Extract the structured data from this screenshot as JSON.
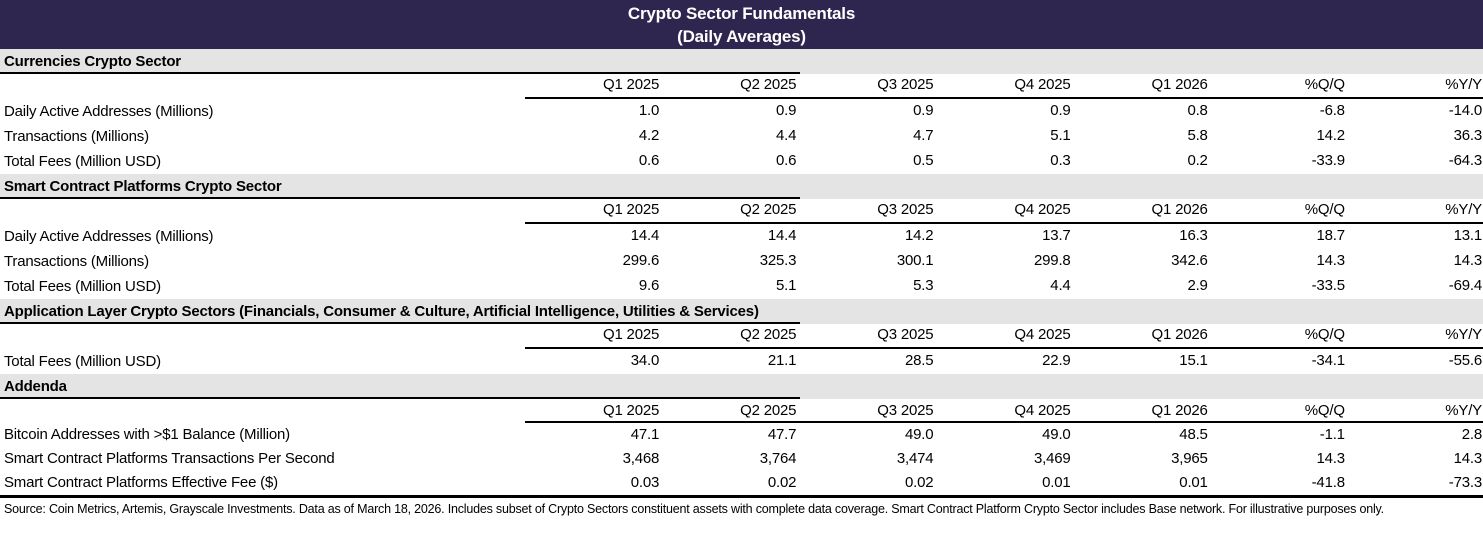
{
  "chart_data": {
    "type": "table",
    "title": "Crypto Sector Fundamentals",
    "subtitle": "(Daily Averages)",
    "columns": [
      "Q1 2025",
      "Q2 2025",
      "Q3 2025",
      "Q4 2025",
      "Q1 2026",
      "%Q/Q",
      "%Y/Y"
    ],
    "sections": [
      {
        "name": "Currencies Crypto Sector",
        "rows": [
          {
            "label": "Daily Active Addresses (Millions)",
            "values": [
              "1.0",
              "0.9",
              "0.9",
              "0.9",
              "0.8",
              "-6.8",
              "-14.0"
            ]
          },
          {
            "label": "Transactions (Millions)",
            "values": [
              "4.2",
              "4.4",
              "4.7",
              "5.1",
              "5.8",
              "14.2",
              "36.3"
            ]
          },
          {
            "label": "Total Fees (Million USD)",
            "values": [
              "0.6",
              "0.6",
              "0.5",
              "0.3",
              "0.2",
              "-33.9",
              "-64.3"
            ]
          }
        ]
      },
      {
        "name": "Smart Contract Platforms Crypto Sector",
        "rows": [
          {
            "label": "Daily Active Addresses (Millions)",
            "values": [
              "14.4",
              "14.4",
              "14.2",
              "13.7",
              "16.3",
              "18.7",
              "13.1"
            ]
          },
          {
            "label": "Transactions (Millions)",
            "values": [
              "299.6",
              "325.3",
              "300.1",
              "299.8",
              "342.6",
              "14.3",
              "14.3"
            ]
          },
          {
            "label": "Total Fees (Million USD)",
            "values": [
              "9.6",
              "5.1",
              "5.3",
              "4.4",
              "2.9",
              "-33.5",
              "-69.4"
            ]
          }
        ]
      },
      {
        "name": "Application Layer Crypto Sectors (Financials, Consumer & Culture, Artificial Intelligence, Utilities & Services)",
        "rows": [
          {
            "label": "Total Fees (Million USD)",
            "values": [
              "34.0",
              "21.1",
              "28.5",
              "22.9",
              "15.1",
              "-34.1",
              "-55.6"
            ]
          }
        ]
      },
      {
        "name": "Addenda",
        "rows": [
          {
            "label": "Bitcoin Addresses with >$1 Balance (Million)",
            "values": [
              "47.1",
              "47.7",
              "49.0",
              "49.0",
              "48.5",
              "-1.1",
              "2.8"
            ]
          },
          {
            "label": "Smart Contract Platforms Transactions Per Second",
            "values": [
              "3,468",
              "3,764",
              "3,474",
              "3,469",
              "3,965",
              "14.3",
              "14.3"
            ]
          },
          {
            "label": "Smart Contract Platforms Effective Fee ($)",
            "values": [
              "0.03",
              "0.02",
              "0.02",
              "0.01",
              "0.01",
              "-41.8",
              "-73.3"
            ]
          }
        ]
      }
    ],
    "footnote": "Source: Coin Metrics, Artemis, Grayscale Investments. Data as of March 18, 2026. Includes subset of Crypto Sectors constituent assets with complete data coverage. Smart Contract Platform Crypto Sector includes Base network. For illustrative purposes only."
  },
  "colors": {
    "header_bg": "#2F264F",
    "header_text": "#FFFFFF",
    "section_band_bg": "#E4E4E4",
    "rule": "#000000"
  }
}
